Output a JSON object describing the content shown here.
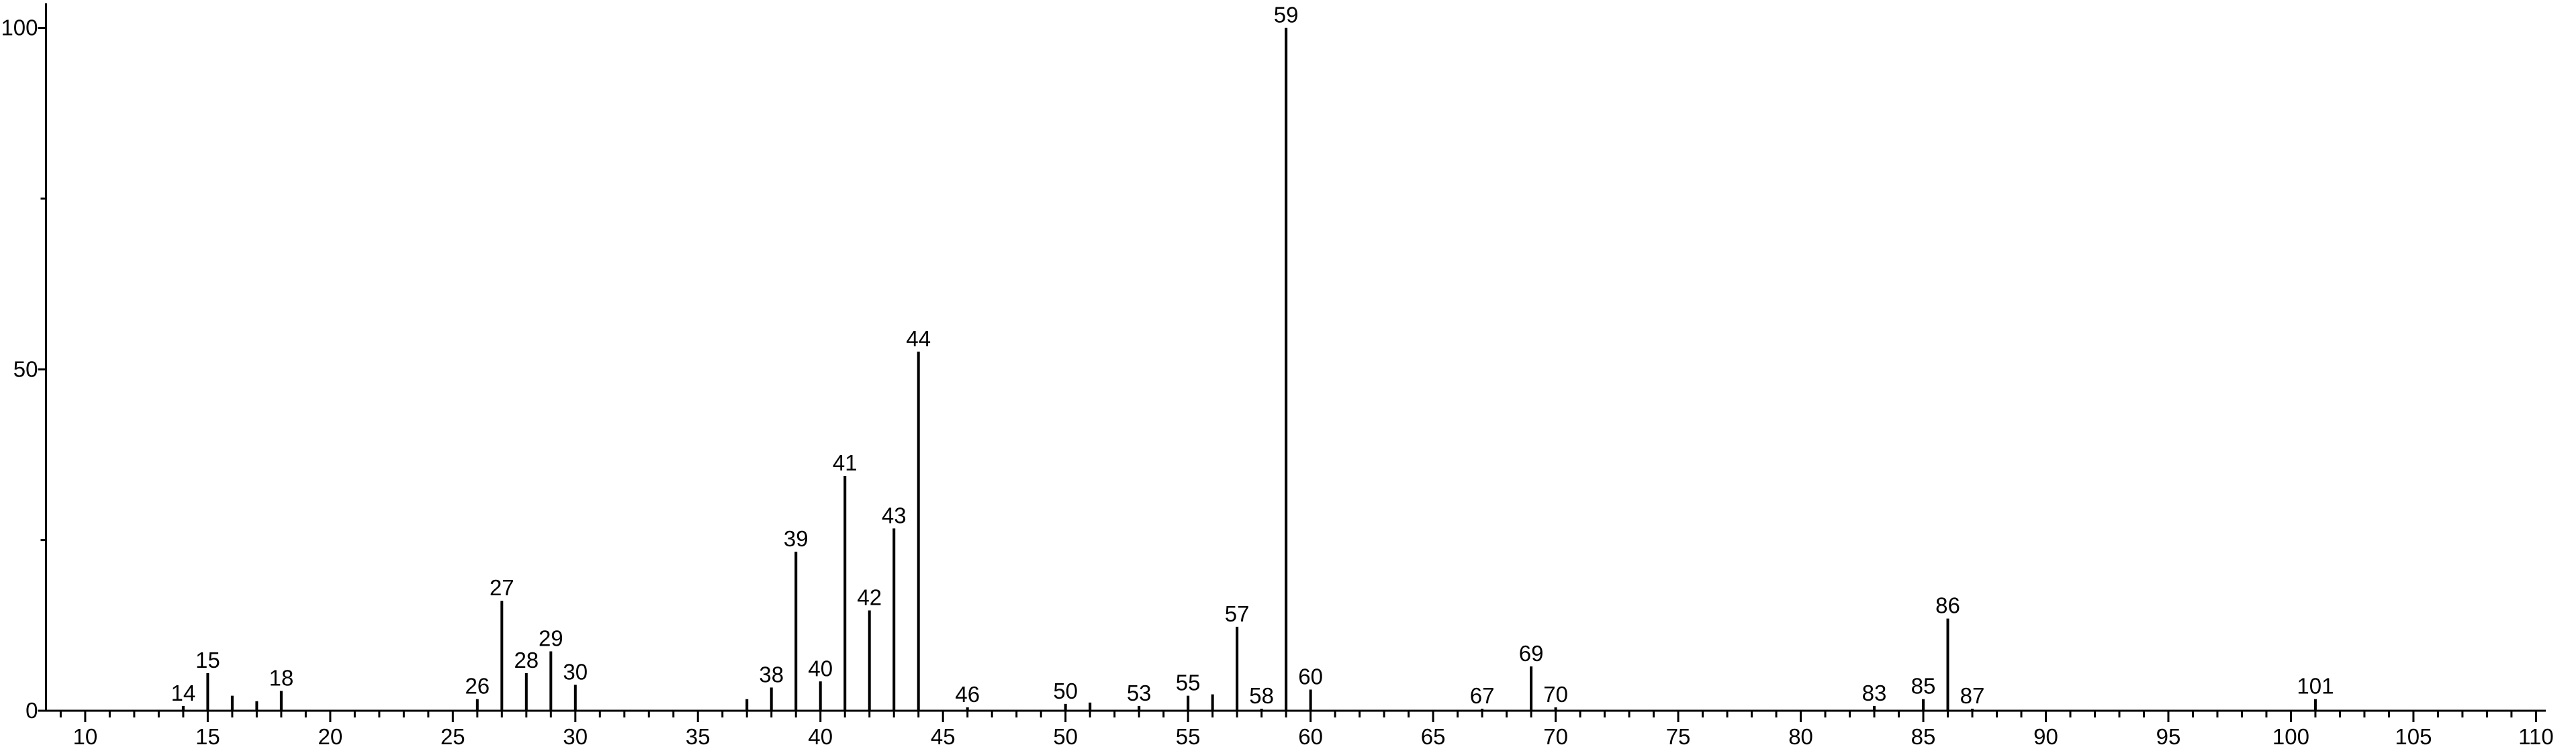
{
  "chart_data": {
    "type": "stick",
    "x": [
      14,
      15,
      16,
      17,
      18,
      26,
      27,
      28,
      29,
      30,
      37,
      38,
      39,
      40,
      41,
      42,
      43,
      44,
      46,
      50,
      51,
      53,
      55,
      56,
      57,
      58,
      59,
      60,
      67,
      69,
      70,
      83,
      85,
      86,
      87,
      101
    ],
    "values": [
      0.7,
      5.5,
      2.2,
      1.4,
      2.9,
      1.7,
      16.1,
      5.5,
      8.7,
      3.8,
      1.7,
      3.4,
      23.3,
      4.3,
      34.4,
      14.7,
      26.7,
      52.6,
      0.5,
      1.0,
      1.2,
      0.7,
      2.2,
      2.4,
      12.3,
      0.3,
      100,
      3.1,
      0.3,
      6.5,
      0.5,
      0.7,
      1.7,
      13.5,
      0.3,
      1.7
    ],
    "labels": [
      "14",
      "15",
      null,
      null,
      "18",
      "26",
      "27",
      "28",
      "29",
      "30",
      null,
      "38",
      "39",
      "40",
      "41",
      "42",
      "43",
      "44",
      "46",
      "50",
      null,
      "53",
      "55",
      null,
      "57",
      "58",
      "59",
      "60",
      "67",
      "69",
      "70",
      "83",
      "85",
      "86",
      "87",
      "101"
    ],
    "color": "#000000",
    "xlim": [
      8.4,
      110.4
    ],
    "ylim": [
      0,
      103.6
    ],
    "xticks": [
      10,
      15,
      20,
      25,
      30,
      35,
      40,
      45,
      50,
      55,
      60,
      65,
      70,
      75,
      80,
      85,
      90,
      95,
      100,
      105,
      110
    ],
    "minor_xticks": [
      9,
      11,
      12,
      13,
      14,
      16,
      17,
      18,
      19,
      21,
      22,
      23,
      24,
      26,
      27,
      28,
      29,
      31,
      32,
      33,
      34,
      36,
      37,
      38,
      39,
      41,
      42,
      43,
      44,
      46,
      47,
      48,
      49,
      51,
      52,
      53,
      54,
      56,
      57,
      58,
      59,
      61,
      62,
      63,
      64,
      66,
      67,
      68,
      69,
      71,
      72,
      73,
      74,
      76,
      77,
      78,
      79,
      81,
      82,
      83,
      84,
      86,
      87,
      88,
      89,
      91,
      92,
      93,
      94,
      96,
      97,
      98,
      99,
      101,
      102,
      103,
      104,
      106,
      107,
      108,
      109
    ],
    "yticks": [
      0,
      50,
      100
    ],
    "minor_yticks": [
      25,
      75
    ]
  }
}
